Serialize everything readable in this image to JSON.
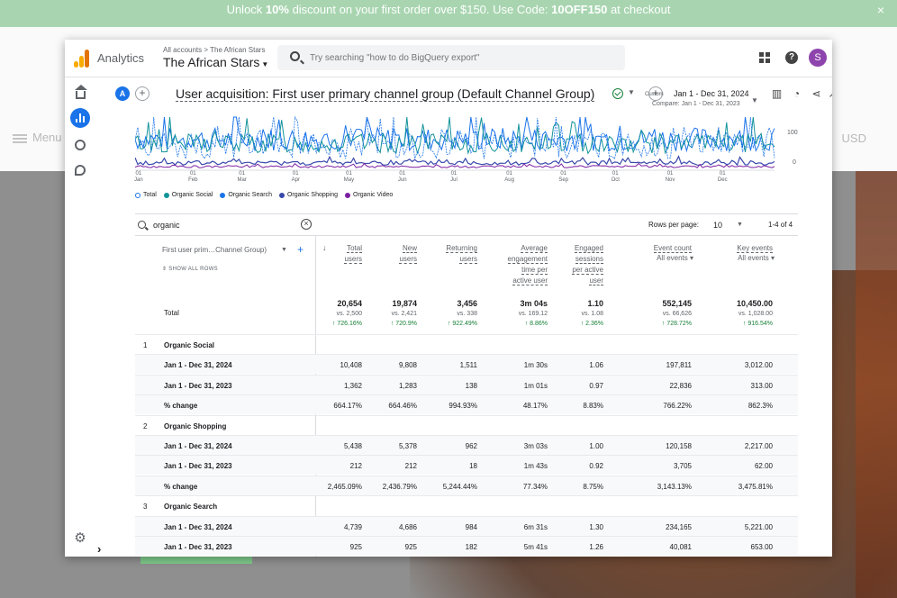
{
  "promo": {
    "text_1": "Unlock ",
    "percent": "10%",
    "text_2": " discount on your first order over $150. Use Code: ",
    "code": "10OFF150",
    "text_3": " at checkout",
    "close": "×"
  },
  "store": {
    "menu": "Menu",
    "currency": "USD"
  },
  "header": {
    "app_name": "Analytics",
    "breadcrumb": "All accounts > The African Stars",
    "property": "The African Stars",
    "search_placeholder": "Try searching \"how to do BigQuery export\"",
    "avatar_letter": "S"
  },
  "toolbar": {
    "segment_letter": "A",
    "report_title": "User acquisition: First user primary channel group (Default Channel Group)",
    "date_label": "Custom",
    "date_range": "Jan 1 - Dec 31, 2024",
    "compare": "Compare: Jan 1 - Dec 31, 2023"
  },
  "chart_data": {
    "type": "line",
    "y_ticks": [
      "100",
      "0"
    ],
    "x_ticks": [
      {
        "day": "01",
        "month": "Jan"
      },
      {
        "day": "01",
        "month": "Feb"
      },
      {
        "day": "01",
        "month": "Mar"
      },
      {
        "day": "01",
        "month": "Apr"
      },
      {
        "day": "01",
        "month": "May"
      },
      {
        "day": "01",
        "month": "Jun"
      },
      {
        "day": "01",
        "month": "Jul"
      },
      {
        "day": "01",
        "month": "Aug"
      },
      {
        "day": "01",
        "month": "Sep"
      },
      {
        "day": "01",
        "month": "Oct"
      },
      {
        "day": "01",
        "month": "Nov"
      },
      {
        "day": "01",
        "month": "Dec"
      }
    ],
    "legend": [
      {
        "name": "Total",
        "color": "#ffffff"
      },
      {
        "name": "Organic Social",
        "color": "#12939a"
      },
      {
        "name": "Organic Search",
        "color": "#1a73e8"
      },
      {
        "name": "Organic Shopping",
        "color": "#3949ab"
      },
      {
        "name": "Organic Video",
        "color": "#7b1fa2"
      }
    ]
  },
  "table": {
    "filter": "organic",
    "rows_per_page_label": "Rows per page:",
    "rows_per_page": "10",
    "pager": "1-4 of 4",
    "dimension_header": "First user prim…Channel Group)",
    "show_all": "SHOW ALL ROWS",
    "metrics": [
      {
        "lines": [
          "Total",
          "users"
        ]
      },
      {
        "lines": [
          "New",
          "users"
        ]
      },
      {
        "lines": [
          "Returning",
          "users"
        ]
      },
      {
        "lines": [
          "Average",
          "engagement",
          "time per",
          "active user"
        ]
      },
      {
        "lines": [
          "Engaged",
          "sessions",
          "per active",
          "user"
        ]
      },
      {
        "lines": [
          "Event count"
        ],
        "sub": "All events"
      },
      {
        "lines": [
          "Key events"
        ],
        "sub": "All events"
      }
    ],
    "total": {
      "label": "Total",
      "values": [
        "20,654",
        "19,874",
        "3,456",
        "3m 04s",
        "1.10",
        "552,145",
        "10,450.00"
      ],
      "vs": [
        "vs. 2,500",
        "vs. 2,421",
        "vs. 338",
        "vs. 169.12",
        "vs. 1.08",
        "vs. 66,626",
        "vs. 1,028.00"
      ],
      "pct": [
        "↑ 726.16%",
        "↑ 720.9%",
        "↑ 922.49%",
        "↑ 8.86%",
        "↑ 2.36%",
        "↑ 728.72%",
        "↑ 916.54%"
      ]
    },
    "rows": [
      {
        "num": "1",
        "label": "Organic Social",
        "values": []
      },
      {
        "num": "",
        "label": "Jan 1 - Dec 31, 2024",
        "values": [
          "10,408",
          "9,808",
          "1,511",
          "1m 30s",
          "1.06",
          "197,811",
          "3,012.00"
        ]
      },
      {
        "num": "",
        "label": "Jan 1 - Dec 31, 2023",
        "values": [
          "1,362",
          "1,283",
          "138",
          "1m 01s",
          "0.97",
          "22,836",
          "313.00"
        ]
      },
      {
        "num": "",
        "label": "% change",
        "values": [
          "664.17%",
          "664.46%",
          "994.93%",
          "48.17%",
          "8.83%",
          "766.22%",
          "862.3%"
        ]
      },
      {
        "num": "2",
        "label": "Organic Shopping",
        "values": []
      },
      {
        "num": "",
        "label": "Jan 1 - Dec 31, 2024",
        "values": [
          "5,438",
          "5,378",
          "962",
          "3m 03s",
          "1.00",
          "120,158",
          "2,217.00"
        ]
      },
      {
        "num": "",
        "label": "Jan 1 - Dec 31, 2023",
        "values": [
          "212",
          "212",
          "18",
          "1m 43s",
          "0.92",
          "3,705",
          "62.00"
        ]
      },
      {
        "num": "",
        "label": "% change",
        "values": [
          "2,465.09%",
          "2,436.79%",
          "5,244.44%",
          "77.34%",
          "8.75%",
          "3,143.13%",
          "3,475.81%"
        ]
      },
      {
        "num": "3",
        "label": "Organic Search",
        "values": []
      },
      {
        "num": "",
        "label": "Jan 1 - Dec 31, 2024",
        "values": [
          "4,739",
          "4,686",
          "984",
          "6m 31s",
          "1.30",
          "234,165",
          "5,221.00"
        ]
      },
      {
        "num": "",
        "label": "Jan 1 - Dec 31, 2023",
        "values": [
          "925",
          "925",
          "182",
          "5m 41s",
          "1.26",
          "40,081",
          "653.00"
        ]
      }
    ]
  }
}
